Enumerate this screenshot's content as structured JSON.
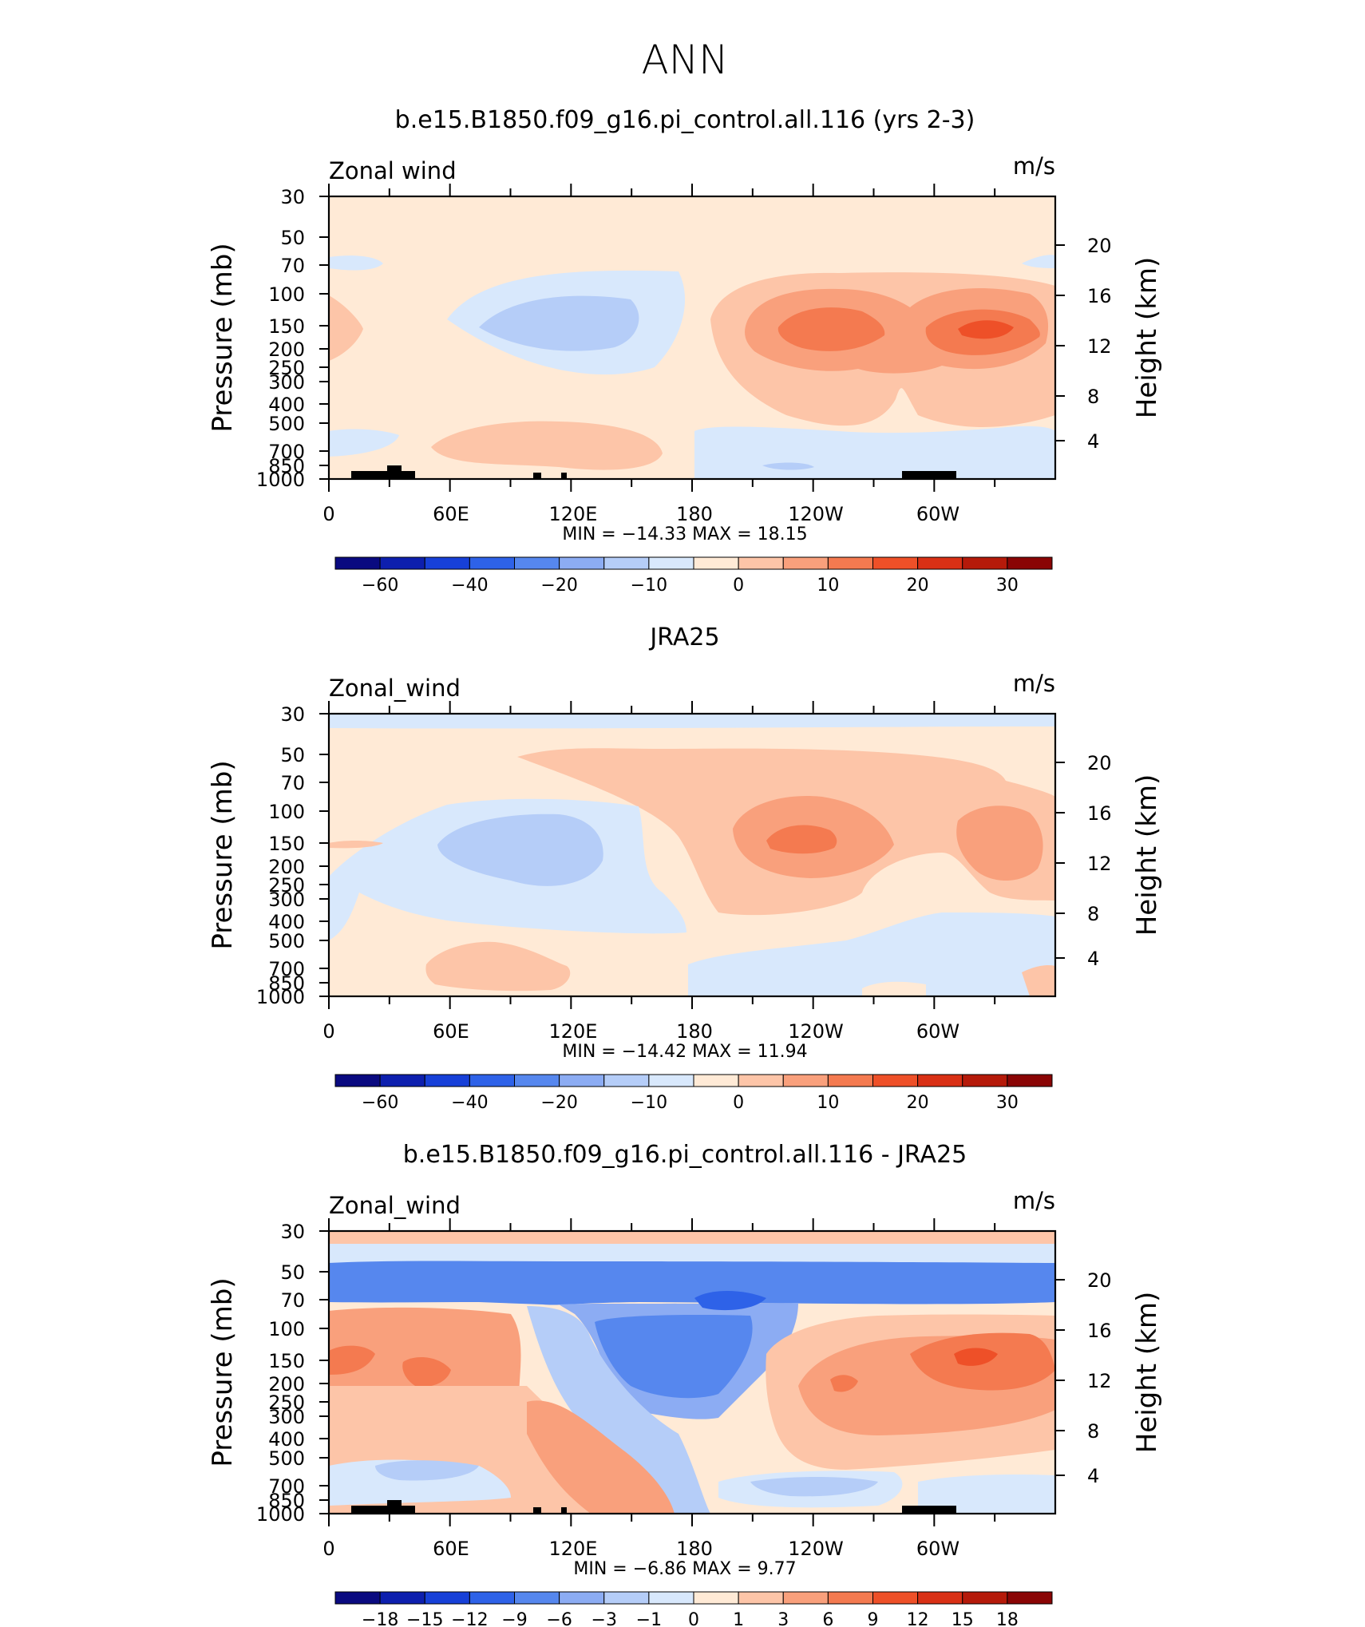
{
  "page_title": "ANN",
  "chart_data": [
    {
      "type": "contour",
      "title": "b.e15.B1850.f09_g16.pi_control.all.116 (yrs 2-3)",
      "left_label": "Zonal wind",
      "right_label": "m/s",
      "ylabel": "Pressure (mb)",
      "ylabel_right": "Height (km)",
      "x_ticks": [
        "0",
        "60E",
        "120E",
        "180",
        "120W",
        "60W"
      ],
      "y_ticks": [
        "30",
        "50",
        "70",
        "100",
        "150",
        "200",
        "250",
        "300",
        "400",
        "500",
        "700",
        "850",
        "1000"
      ],
      "y_ticks_right": [
        "20",
        "16",
        "12",
        "8",
        "4"
      ],
      "stats": "MIN = −14.33 MAX = 18.15",
      "colorbar_labels": [
        "−60",
        "−40",
        "−20",
        "−10",
        "0",
        "10",
        "20",
        "30"
      ],
      "colorbar_colors": [
        "#0a0a80",
        "#0d1fae",
        "#1740d8",
        "#2e62e8",
        "#5687ee",
        "#8cacf3",
        "#b5cdf8",
        "#d8e8fc",
        "#ffead6",
        "#fdc5a8",
        "#f9a07c",
        "#f47a50",
        "#ee5028",
        "#d93015",
        "#b51a0a",
        "#8a0505"
      ],
      "extremes": {
        "min": -14.33,
        "max": 18.15
      }
    },
    {
      "type": "contour",
      "title": "JRA25",
      "left_label": "Zonal_wind",
      "right_label": "m/s",
      "ylabel": "Pressure (mb)",
      "ylabel_right": "Height (km)",
      "x_ticks": [
        "0",
        "60E",
        "120E",
        "180",
        "120W",
        "60W"
      ],
      "y_ticks": [
        "30",
        "50",
        "70",
        "100",
        "150",
        "200",
        "250",
        "300",
        "400",
        "500",
        "700",
        "850",
        "1000"
      ],
      "y_ticks_right": [
        "20",
        "16",
        "12",
        "8",
        "4"
      ],
      "stats": "MIN = −14.42 MAX = 11.94",
      "colorbar_labels": [
        "−60",
        "−40",
        "−20",
        "−10",
        "0",
        "10",
        "20",
        "30"
      ],
      "colorbar_colors": [
        "#0a0a80",
        "#0d1fae",
        "#1740d8",
        "#2e62e8",
        "#5687ee",
        "#8cacf3",
        "#b5cdf8",
        "#d8e8fc",
        "#ffead6",
        "#fdc5a8",
        "#f9a07c",
        "#f47a50",
        "#ee5028",
        "#d93015",
        "#b51a0a",
        "#8a0505"
      ],
      "extremes": {
        "min": -14.42,
        "max": 11.94
      }
    },
    {
      "type": "contour",
      "title": "b.e15.B1850.f09_g16.pi_control.all.116 - JRA25",
      "left_label": "Zonal_wind",
      "right_label": "m/s",
      "ylabel": "Pressure (mb)",
      "ylabel_right": "Height (km)",
      "x_ticks": [
        "0",
        "60E",
        "120E",
        "180",
        "120W",
        "60W"
      ],
      "y_ticks": [
        "30",
        "50",
        "70",
        "100",
        "150",
        "200",
        "250",
        "300",
        "400",
        "500",
        "700",
        "850",
        "1000"
      ],
      "y_ticks_right": [
        "20",
        "16",
        "12",
        "8",
        "4"
      ],
      "stats": "MIN = −6.86 MAX = 9.77",
      "colorbar_labels": [
        "−18",
        "−15",
        "−12",
        "−9",
        "−6",
        "−3",
        "−1",
        "0",
        "1",
        "3",
        "6",
        "9",
        "12",
        "15",
        "18"
      ],
      "colorbar_colors": [
        "#0a0a80",
        "#0d1fae",
        "#1740d8",
        "#2e62e8",
        "#5687ee",
        "#8cacf3",
        "#b5cdf8",
        "#d8e8fc",
        "#ffead6",
        "#fdc5a8",
        "#f9a07c",
        "#f47a50",
        "#ee5028",
        "#d93015",
        "#b51a0a",
        "#8a0505"
      ],
      "extremes": {
        "min": -6.86,
        "max": 9.77
      }
    }
  ]
}
